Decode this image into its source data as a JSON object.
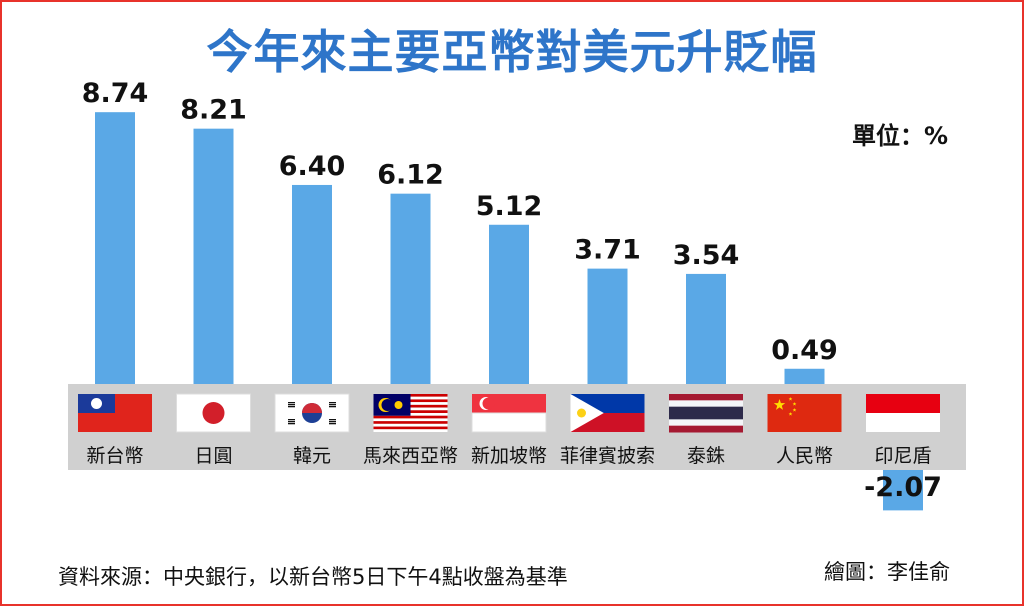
{
  "title": "今年來主要亞幣對美元升貶幅",
  "unit_label": "單位：%",
  "source": "資料來源：中央銀行，以新台幣5日下午4點收盤為基準",
  "credit": "繪圖：李佳俞",
  "colors": {
    "bar": "#5aa8e6",
    "band": "#d0d0d0",
    "title": "#2e75c9",
    "border": "#e8322b"
  },
  "chart_data": {
    "type": "bar",
    "title": "今年來主要亞幣對美元升貶幅",
    "categories": [
      "新台幣",
      "日圓",
      "韓元",
      "馬來西亞幣",
      "新加坡幣",
      "菲律賓披索",
      "泰銖",
      "人民幣",
      "印尼盾"
    ],
    "values": [
      8.74,
      8.21,
      6.4,
      6.12,
      5.12,
      3.71,
      3.54,
      0.49,
      -2.07
    ],
    "value_labels": [
      "8.74",
      "8.21",
      "6.40",
      "6.12",
      "5.12",
      "3.71",
      "3.54",
      "0.49",
      "-2.07"
    ],
    "flags": [
      "taiwan-flag",
      "japan-flag",
      "korea-flag",
      "malaysia-flag",
      "singapore-flag",
      "philippines-flag",
      "thailand-flag",
      "china-flag",
      "indonesia-flag"
    ],
    "ylabel": "單位：%",
    "grid": false,
    "legend": "none"
  }
}
